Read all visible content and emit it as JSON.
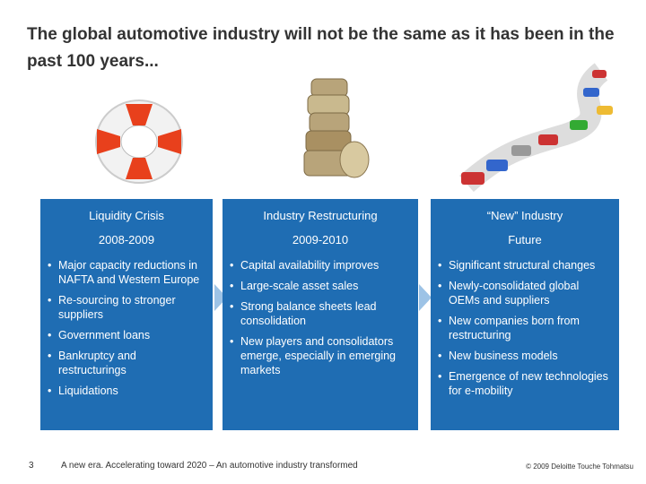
{
  "header": {
    "title": "The global automotive industry will not be the same as it has been in the past 100 years..."
  },
  "columns": [
    {
      "heading": "Liquidity Crisis",
      "period": "2008-2009",
      "bullets": [
        "Major capacity reductions in NAFTA and Western Europe",
        "Re-sourcing to stronger suppliers",
        "Government loans",
        "Bankruptcy and restructurings",
        "Liquidations"
      ]
    },
    {
      "heading": "Industry Restructuring",
      "period": "2009-2010",
      "bullets": [
        "Capital availability improves",
        "Large-scale asset sales",
        "Strong balance sheets lead consolidation",
        "New players and consolidators emerge, especially in emerging markets"
      ]
    },
    {
      "heading": "“New” Industry",
      "period": "Future",
      "bullets": [
        "Significant structural changes",
        "Newly-consolidated global OEMs and suppliers",
        "New companies born from restructuring",
        "New business models",
        "Emergence of new technologies for e-mobility"
      ]
    }
  ],
  "footer": {
    "page": "3",
    "source": "A new era. Accelerating toward 2020 – An automotive industry transformed",
    "copyright": "© 2009 Deloitte Touche Tohmatsu"
  }
}
